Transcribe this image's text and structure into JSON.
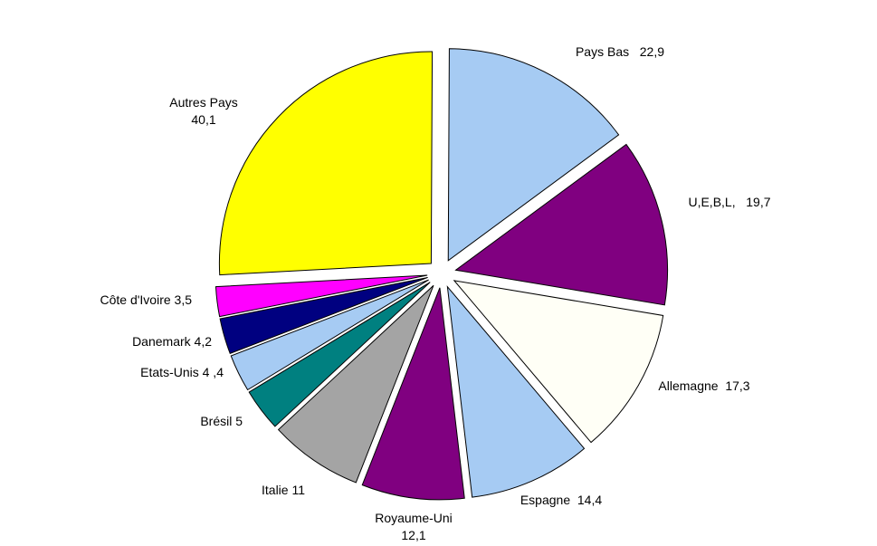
{
  "chart_data": {
    "type": "pie",
    "title": "",
    "exploded": true,
    "slices": [
      {
        "label": "Pays Bas",
        "value": 22.9,
        "value_text": "22,9",
        "line1": "Pays Bas   22,9",
        "line2": "",
        "color": "#a6cbf3"
      },
      {
        "label": "U,E,B,L,",
        "value": 19.7,
        "value_text": "19,7",
        "line1": "U,E,B,L,   19,7",
        "line2": "",
        "color": "#800080"
      },
      {
        "label": "Allemagne",
        "value": 17.3,
        "value_text": "17,3",
        "line1": "Allemagne  17,3",
        "line2": "",
        "color": "#fffff6"
      },
      {
        "label": "Espagne",
        "value": 14.4,
        "value_text": "14,4",
        "line1": "Espagne  14,4",
        "line2": "",
        "color": "#a6cbf3"
      },
      {
        "label": "Royaume-Uni",
        "value": 12.1,
        "value_text": "12,1",
        "line1": "Royaume-Uni",
        "line2": "12,1",
        "color": "#800080"
      },
      {
        "label": "Italie",
        "value": 11,
        "value_text": "11",
        "line1": "Italie 11",
        "line2": "",
        "color": "#a4a4a4"
      },
      {
        "label": "Brésil",
        "value": 5,
        "value_text": "5",
        "line1": "Brésil 5",
        "line2": "",
        "color": "#008080"
      },
      {
        "label": "Etats-Unis",
        "value": 4.4,
        "value_text": "4 ,4",
        "line1": "Etats-Unis 4 ,4",
        "line2": "",
        "color": "#a6cbf3"
      },
      {
        "label": "Danemark",
        "value": 4.2,
        "value_text": "4,2",
        "line1": "Danemark 4,2",
        "line2": "",
        "color": "#000080"
      },
      {
        "label": "Côte d'Ivoire",
        "value": 3.5,
        "value_text": "3,5",
        "line1": "Côte d'Ivoire 3,5",
        "line2": "",
        "color": "#ff00ff"
      },
      {
        "label": "Autres Pays",
        "value": 40.1,
        "value_text": "40,1",
        "line1": "Autres Pays",
        "line2": "40,1",
        "color": "#ffff00"
      }
    ]
  }
}
